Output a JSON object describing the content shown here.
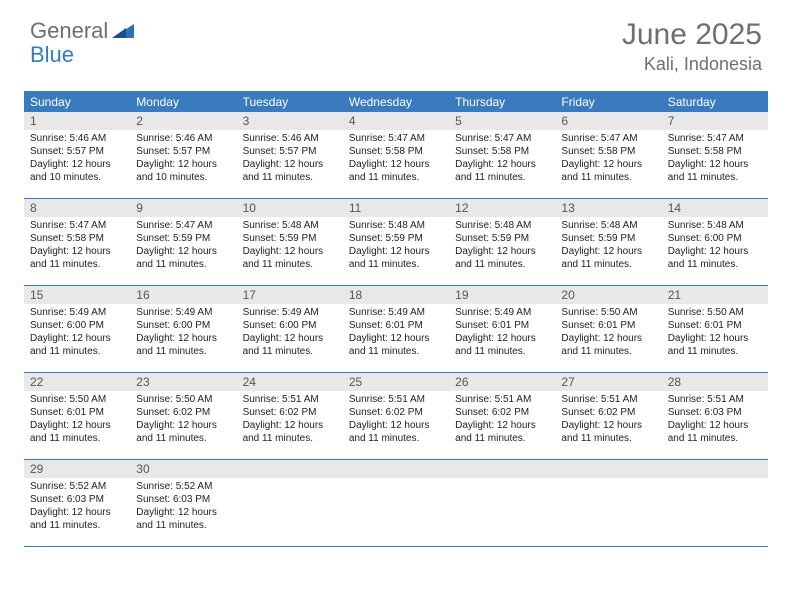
{
  "logo": {
    "text_general": "General",
    "text_blue": "Blue",
    "icon_color": "#2f6fb3"
  },
  "header": {
    "month_title": "June 2025",
    "location": "Kali, Indonesia"
  },
  "colors": {
    "header_bar": "#3a7abf",
    "day_num_bg": "#e8e8e8",
    "text_muted": "#6f6f6f"
  },
  "daysOfWeek": [
    "Sunday",
    "Monday",
    "Tuesday",
    "Wednesday",
    "Thursday",
    "Friday",
    "Saturday"
  ],
  "weeks": [
    [
      {
        "num": "1",
        "sunrise": "5:46 AM",
        "sunset": "5:57 PM",
        "daylight": "12 hours and 10 minutes."
      },
      {
        "num": "2",
        "sunrise": "5:46 AM",
        "sunset": "5:57 PM",
        "daylight": "12 hours and 10 minutes."
      },
      {
        "num": "3",
        "sunrise": "5:46 AM",
        "sunset": "5:57 PM",
        "daylight": "12 hours and 11 minutes."
      },
      {
        "num": "4",
        "sunrise": "5:47 AM",
        "sunset": "5:58 PM",
        "daylight": "12 hours and 11 minutes."
      },
      {
        "num": "5",
        "sunrise": "5:47 AM",
        "sunset": "5:58 PM",
        "daylight": "12 hours and 11 minutes."
      },
      {
        "num": "6",
        "sunrise": "5:47 AM",
        "sunset": "5:58 PM",
        "daylight": "12 hours and 11 minutes."
      },
      {
        "num": "7",
        "sunrise": "5:47 AM",
        "sunset": "5:58 PM",
        "daylight": "12 hours and 11 minutes."
      }
    ],
    [
      {
        "num": "8",
        "sunrise": "5:47 AM",
        "sunset": "5:58 PM",
        "daylight": "12 hours and 11 minutes."
      },
      {
        "num": "9",
        "sunrise": "5:47 AM",
        "sunset": "5:59 PM",
        "daylight": "12 hours and 11 minutes."
      },
      {
        "num": "10",
        "sunrise": "5:48 AM",
        "sunset": "5:59 PM",
        "daylight": "12 hours and 11 minutes."
      },
      {
        "num": "11",
        "sunrise": "5:48 AM",
        "sunset": "5:59 PM",
        "daylight": "12 hours and 11 minutes."
      },
      {
        "num": "12",
        "sunrise": "5:48 AM",
        "sunset": "5:59 PM",
        "daylight": "12 hours and 11 minutes."
      },
      {
        "num": "13",
        "sunrise": "5:48 AM",
        "sunset": "5:59 PM",
        "daylight": "12 hours and 11 minutes."
      },
      {
        "num": "14",
        "sunrise": "5:48 AM",
        "sunset": "6:00 PM",
        "daylight": "12 hours and 11 minutes."
      }
    ],
    [
      {
        "num": "15",
        "sunrise": "5:49 AM",
        "sunset": "6:00 PM",
        "daylight": "12 hours and 11 minutes."
      },
      {
        "num": "16",
        "sunrise": "5:49 AM",
        "sunset": "6:00 PM",
        "daylight": "12 hours and 11 minutes."
      },
      {
        "num": "17",
        "sunrise": "5:49 AM",
        "sunset": "6:00 PM",
        "daylight": "12 hours and 11 minutes."
      },
      {
        "num": "18",
        "sunrise": "5:49 AM",
        "sunset": "6:01 PM",
        "daylight": "12 hours and 11 minutes."
      },
      {
        "num": "19",
        "sunrise": "5:49 AM",
        "sunset": "6:01 PM",
        "daylight": "12 hours and 11 minutes."
      },
      {
        "num": "20",
        "sunrise": "5:50 AM",
        "sunset": "6:01 PM",
        "daylight": "12 hours and 11 minutes."
      },
      {
        "num": "21",
        "sunrise": "5:50 AM",
        "sunset": "6:01 PM",
        "daylight": "12 hours and 11 minutes."
      }
    ],
    [
      {
        "num": "22",
        "sunrise": "5:50 AM",
        "sunset": "6:01 PM",
        "daylight": "12 hours and 11 minutes."
      },
      {
        "num": "23",
        "sunrise": "5:50 AM",
        "sunset": "6:02 PM",
        "daylight": "12 hours and 11 minutes."
      },
      {
        "num": "24",
        "sunrise": "5:51 AM",
        "sunset": "6:02 PM",
        "daylight": "12 hours and 11 minutes."
      },
      {
        "num": "25",
        "sunrise": "5:51 AM",
        "sunset": "6:02 PM",
        "daylight": "12 hours and 11 minutes."
      },
      {
        "num": "26",
        "sunrise": "5:51 AM",
        "sunset": "6:02 PM",
        "daylight": "12 hours and 11 minutes."
      },
      {
        "num": "27",
        "sunrise": "5:51 AM",
        "sunset": "6:02 PM",
        "daylight": "12 hours and 11 minutes."
      },
      {
        "num": "28",
        "sunrise": "5:51 AM",
        "sunset": "6:03 PM",
        "daylight": "12 hours and 11 minutes."
      }
    ],
    [
      {
        "num": "29",
        "sunrise": "5:52 AM",
        "sunset": "6:03 PM",
        "daylight": "12 hours and 11 minutes."
      },
      {
        "num": "30",
        "sunrise": "5:52 AM",
        "sunset": "6:03 PM",
        "daylight": "12 hours and 11 minutes."
      },
      null,
      null,
      null,
      null,
      null
    ]
  ],
  "labels": {
    "sunrise_prefix": "Sunrise: ",
    "sunset_prefix": "Sunset: ",
    "daylight_prefix": "Daylight: "
  }
}
